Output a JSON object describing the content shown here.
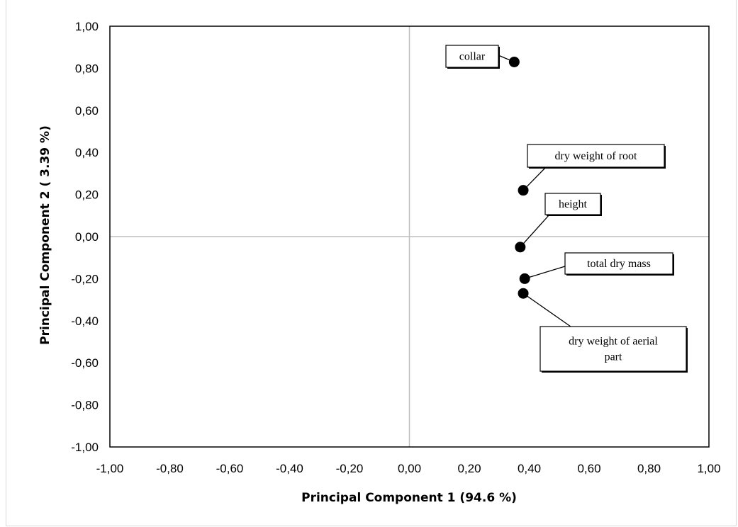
{
  "chart_data": {
    "type": "scatter",
    "title": "",
    "xlabel": "Principal Component 1 (94.6 %)",
    "ylabel": "Principal Component 2 ( 3.39 %)",
    "xlim": [
      -1.0,
      1.0
    ],
    "ylim": [
      -1.0,
      1.0
    ],
    "x_tick_labels": [
      "-1,00",
      "-0,80",
      "-0,60",
      "-0,40",
      "-0,20",
      "0,00",
      "0,20",
      "0,40",
      "0,60",
      "0,80",
      "1,00"
    ],
    "y_tick_labels": [
      "1,00",
      "0,80",
      "0,60",
      "0,40",
      "0,20",
      "0,00",
      "-0,20",
      "-0,40",
      "-0,60",
      "-0,80",
      "-1,00"
    ],
    "grid": false,
    "zero_lines": true,
    "legend": "none",
    "points": [
      {
        "label": "collar",
        "x": 0.35,
        "y": 0.83
      },
      {
        "label": "dry weight of root",
        "x": 0.38,
        "y": 0.22
      },
      {
        "label": "height",
        "x": 0.37,
        "y": -0.05
      },
      {
        "label": "total dry mass",
        "x": 0.385,
        "y": -0.2
      },
      {
        "label": "dry weight of aerial part",
        "x": 0.38,
        "y": -0.27
      }
    ],
    "colors": {
      "marker": "#000000",
      "zero_line": "#bfbfbf",
      "plot_border": "#000000"
    }
  }
}
